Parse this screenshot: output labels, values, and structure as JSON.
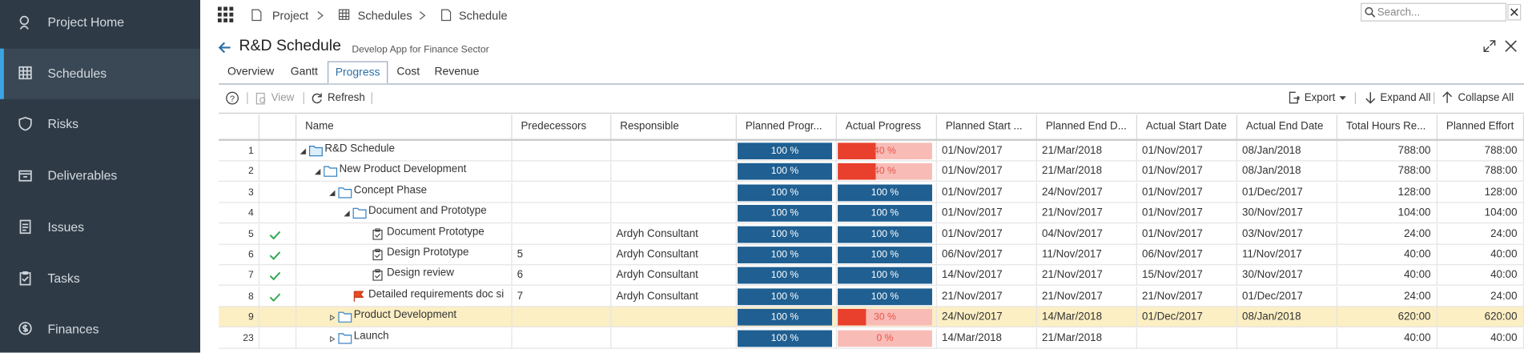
{
  "sidebar": {
    "items": [
      "Project Home",
      "Schedules",
      "Risks",
      "Deliverables",
      "Issues",
      "Tasks",
      "Finances"
    ],
    "active": 1
  },
  "breadcrumb": [
    "Project",
    "Schedules",
    "Schedule"
  ],
  "search": {
    "placeholder": "Search..."
  },
  "header": {
    "title": "R&D Schedule",
    "subtitle": "Develop App for Finance Sector"
  },
  "tabs": {
    "items": [
      "Overview",
      "Gantt",
      "Progress",
      "Cost",
      "Revenue"
    ],
    "active": 2
  },
  "toolbar": {
    "view": "View",
    "refresh": "Refresh",
    "export": "Export",
    "expand_all": "Expand All",
    "collapse_all": "Collapse All"
  },
  "table": {
    "columns": [
      "Name",
      "Predecessors",
      "Responsible",
      "Planned Progr...",
      "Actual Progress",
      "Planned Start ...",
      "Planned End D...",
      "Actual Start Date",
      "Actual End Date",
      "Total Hours Re...",
      "Planned Effort"
    ],
    "rows": [
      {
        "id": 1,
        "level": 0,
        "kind": "summary",
        "expanded": true,
        "done": false,
        "selected": false,
        "name": "R&D Schedule",
        "predecessors": null,
        "responsible": null,
        "planned_progress": 100,
        "planned_progress_label": "100 %",
        "actual_progress": 40,
        "actual_progress_label": "40 %",
        "planned_start": "01/Nov/2017",
        "planned_end": "21/Mar/2018",
        "actual_start": "01/Nov/2017",
        "actual_end": "08/Jan/2018",
        "total_hours": "788:00",
        "planned_effort": "788:00"
      },
      {
        "id": 2,
        "level": 1,
        "kind": "summary",
        "expanded": true,
        "done": false,
        "selected": false,
        "name": "New Product Development",
        "predecessors": null,
        "responsible": null,
        "planned_progress": 100,
        "planned_progress_label": "100 %",
        "actual_progress": 40,
        "actual_progress_label": "40 %",
        "planned_start": "01/Nov/2017",
        "planned_end": "21/Mar/2018",
        "actual_start": "01/Nov/2017",
        "actual_end": "08/Jan/2018",
        "total_hours": "788:00",
        "planned_effort": "788:00"
      },
      {
        "id": 3,
        "level": 2,
        "kind": "summary",
        "expanded": true,
        "done": false,
        "selected": false,
        "name": "Concept Phase",
        "predecessors": null,
        "responsible": null,
        "planned_progress": 100,
        "planned_progress_label": "100 %",
        "actual_progress": 100,
        "actual_progress_label": "100 %",
        "planned_start": "01/Nov/2017",
        "planned_end": "24/Nov/2017",
        "actual_start": "01/Nov/2017",
        "actual_end": "01/Dec/2017",
        "total_hours": "128:00",
        "planned_effort": "128:00"
      },
      {
        "id": 4,
        "level": 3,
        "kind": "summary",
        "expanded": true,
        "done": false,
        "selected": false,
        "name": "Document and Prototype",
        "predecessors": null,
        "responsible": null,
        "planned_progress": 100,
        "planned_progress_label": "100 %",
        "actual_progress": 100,
        "actual_progress_label": "100 %",
        "planned_start": "01/Nov/2017",
        "planned_end": "21/Nov/2017",
        "actual_start": "01/Nov/2017",
        "actual_end": "30/Nov/2017",
        "total_hours": "104:00",
        "planned_effort": "104:00"
      },
      {
        "id": 5,
        "level": 4,
        "kind": "task",
        "expanded": false,
        "done": true,
        "selected": false,
        "name": "Document Prototype",
        "predecessors": null,
        "responsible": "Ardyh Consultant",
        "planned_progress": 100,
        "planned_progress_label": "100 %",
        "actual_progress": 100,
        "actual_progress_label": "100 %",
        "planned_start": "01/Nov/2017",
        "planned_end": "04/Nov/2017",
        "actual_start": "01/Nov/2017",
        "actual_end": "03/Nov/2017",
        "total_hours": "24:00",
        "planned_effort": "24:00"
      },
      {
        "id": 6,
        "level": 4,
        "kind": "task",
        "expanded": false,
        "done": true,
        "selected": false,
        "name": "Design Prototype",
        "predecessors": 5,
        "responsible": "Ardyh Consultant",
        "planned_progress": 100,
        "planned_progress_label": "100 %",
        "actual_progress": 100,
        "actual_progress_label": "100 %",
        "planned_start": "06/Nov/2017",
        "planned_end": "11/Nov/2017",
        "actual_start": "06/Nov/2017",
        "actual_end": "11/Nov/2017",
        "total_hours": "40:00",
        "planned_effort": "40:00"
      },
      {
        "id": 7,
        "level": 4,
        "kind": "task",
        "expanded": false,
        "done": true,
        "selected": false,
        "name": "Design review",
        "predecessors": 6,
        "responsible": "Ardyh Consultant",
        "planned_progress": 100,
        "planned_progress_label": "100 %",
        "actual_progress": 100,
        "actual_progress_label": "100 %",
        "planned_start": "14/Nov/2017",
        "planned_end": "21/Nov/2017",
        "actual_start": "15/Nov/2017",
        "actual_end": "30/Nov/2017",
        "total_hours": "40:00",
        "planned_effort": "40:00"
      },
      {
        "id": 8,
        "level": 3,
        "kind": "milestone",
        "expanded": false,
        "done": true,
        "selected": false,
        "name": "Detailed requirements doc si",
        "predecessors": 7,
        "responsible": "Ardyh Consultant",
        "planned_progress": 100,
        "planned_progress_label": "100 %",
        "actual_progress": 100,
        "actual_progress_label": "100 %",
        "planned_start": "21/Nov/2017",
        "planned_end": "21/Nov/2017",
        "actual_start": "21/Nov/2017",
        "actual_end": "01/Dec/2017",
        "total_hours": "24:00",
        "planned_effort": "24:00"
      },
      {
        "id": 9,
        "level": 2,
        "kind": "summary",
        "expanded": false,
        "done": false,
        "selected": true,
        "name": "Product Development",
        "predecessors": null,
        "responsible": null,
        "planned_progress": 100,
        "planned_progress_label": "100 %",
        "actual_progress": 30,
        "actual_progress_label": "30 %",
        "planned_start": "24/Nov/2017",
        "planned_end": "14/Mar/2018",
        "actual_start": "01/Dec/2017",
        "actual_end": "08/Jan/2018",
        "total_hours": "620:00",
        "planned_effort": "620:00"
      },
      {
        "id": 23,
        "level": 2,
        "kind": "summary",
        "expanded": false,
        "done": false,
        "selected": false,
        "name": "Launch",
        "predecessors": null,
        "responsible": null,
        "planned_progress": 100,
        "planned_progress_label": "100 %",
        "actual_progress": 0,
        "actual_progress_label": "0 %",
        "planned_start": "14/Mar/2018",
        "planned_end": "21/Mar/2018",
        "actual_start": null,
        "actual_end": null,
        "total_hours": "40:00",
        "planned_effort": "40:00"
      }
    ]
  }
}
